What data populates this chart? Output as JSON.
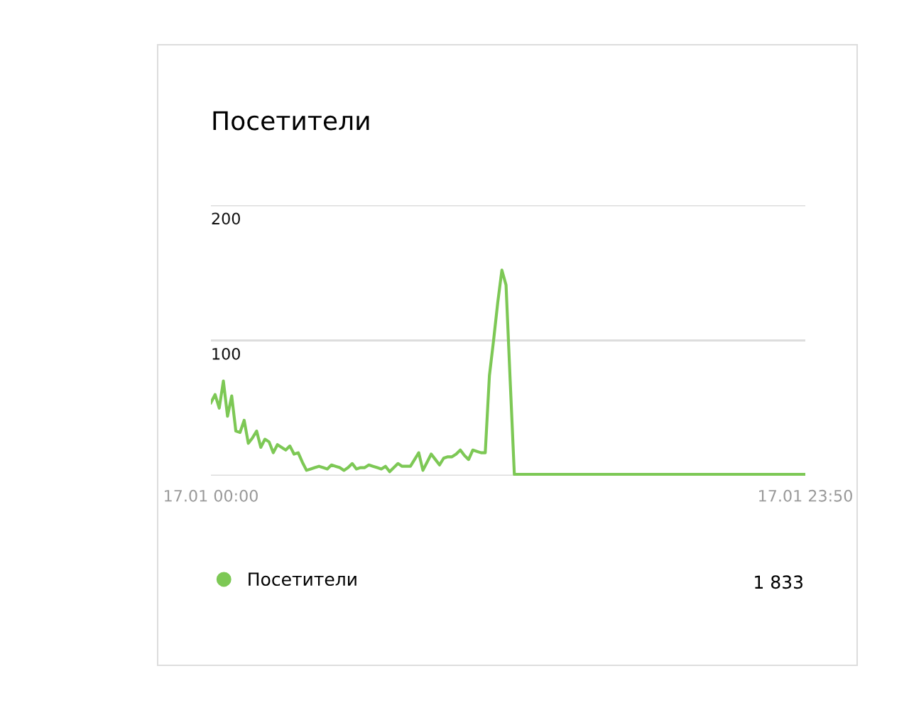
{
  "chart_data": {
    "type": "line",
    "title": "Посетители",
    "categories": [
      "17.01 00:00",
      null,
      null,
      null,
      null,
      null,
      null,
      null,
      null,
      null,
      null,
      null,
      null,
      null,
      null,
      null,
      null,
      null,
      null,
      null,
      null,
      null,
      null,
      null,
      null,
      null,
      null,
      null,
      null,
      null,
      null,
      null,
      null,
      null,
      null,
      null,
      null,
      null,
      null,
      null,
      null,
      null,
      null,
      null,
      null,
      null,
      null,
      null,
      null,
      null,
      null,
      null,
      null,
      null,
      null,
      null,
      null,
      null,
      null,
      null,
      null,
      null,
      null,
      null,
      null,
      null,
      null,
      null,
      null,
      null,
      null,
      null,
      null,
      null,
      null,
      null,
      null,
      null,
      null,
      null,
      null,
      null,
      null,
      null,
      null,
      null,
      null,
      null,
      null,
      null,
      null,
      null,
      null,
      null,
      null,
      null,
      null,
      null,
      null,
      null,
      null,
      null,
      null,
      null,
      null,
      null,
      null,
      null,
      null,
      null,
      null,
      null,
      null,
      null,
      null,
      null,
      null,
      null,
      null,
      null,
      null,
      null,
      null,
      null,
      null,
      null,
      null,
      null,
      null,
      null,
      null,
      null,
      null,
      null,
      null,
      null,
      null,
      null,
      null,
      null,
      null,
      null,
      null,
      "17.01 23:50"
    ],
    "series": [
      {
        "name": "Посетители",
        "color": "#7dc855",
        "values": [
          54,
          60,
          50,
          70,
          44,
          59,
          33,
          32,
          41,
          24,
          28,
          33,
          21,
          27,
          25,
          17,
          23,
          21,
          19,
          22,
          16,
          17,
          10,
          4,
          5,
          6,
          7,
          6,
          5,
          8,
          7,
          6,
          4,
          6,
          9,
          5,
          6,
          6,
          8,
          7,
          6,
          5,
          7,
          3,
          6,
          9,
          7,
          7,
          7,
          12,
          17,
          4,
          10,
          16,
          12,
          8,
          13,
          14,
          14,
          16,
          19,
          15,
          12,
          19,
          18,
          17,
          17,
          74,
          100,
          128,
          152,
          141,
          70,
          1,
          1,
          1,
          1,
          1,
          1,
          1,
          1,
          1,
          1,
          1,
          1,
          1,
          1,
          1,
          1,
          1,
          1,
          1,
          1,
          1,
          1,
          1,
          1,
          1,
          1,
          1,
          1,
          1,
          1,
          1,
          1,
          1,
          1,
          1,
          1,
          1,
          1,
          1,
          1,
          1,
          1,
          1,
          1,
          1,
          1,
          1,
          1,
          1,
          1,
          1,
          1,
          1,
          1,
          1,
          1,
          1,
          1,
          1,
          1,
          1,
          1,
          1,
          1,
          1,
          1,
          1,
          1,
          1,
          1,
          1
        ]
      }
    ],
    "ylim": [
      0,
      200
    ],
    "yticks": [
      {
        "value": 0,
        "label": null
      },
      100,
      200
    ],
    "grid": "y",
    "legend": "bottom",
    "annotations": [
      "1 833"
    ]
  }
}
